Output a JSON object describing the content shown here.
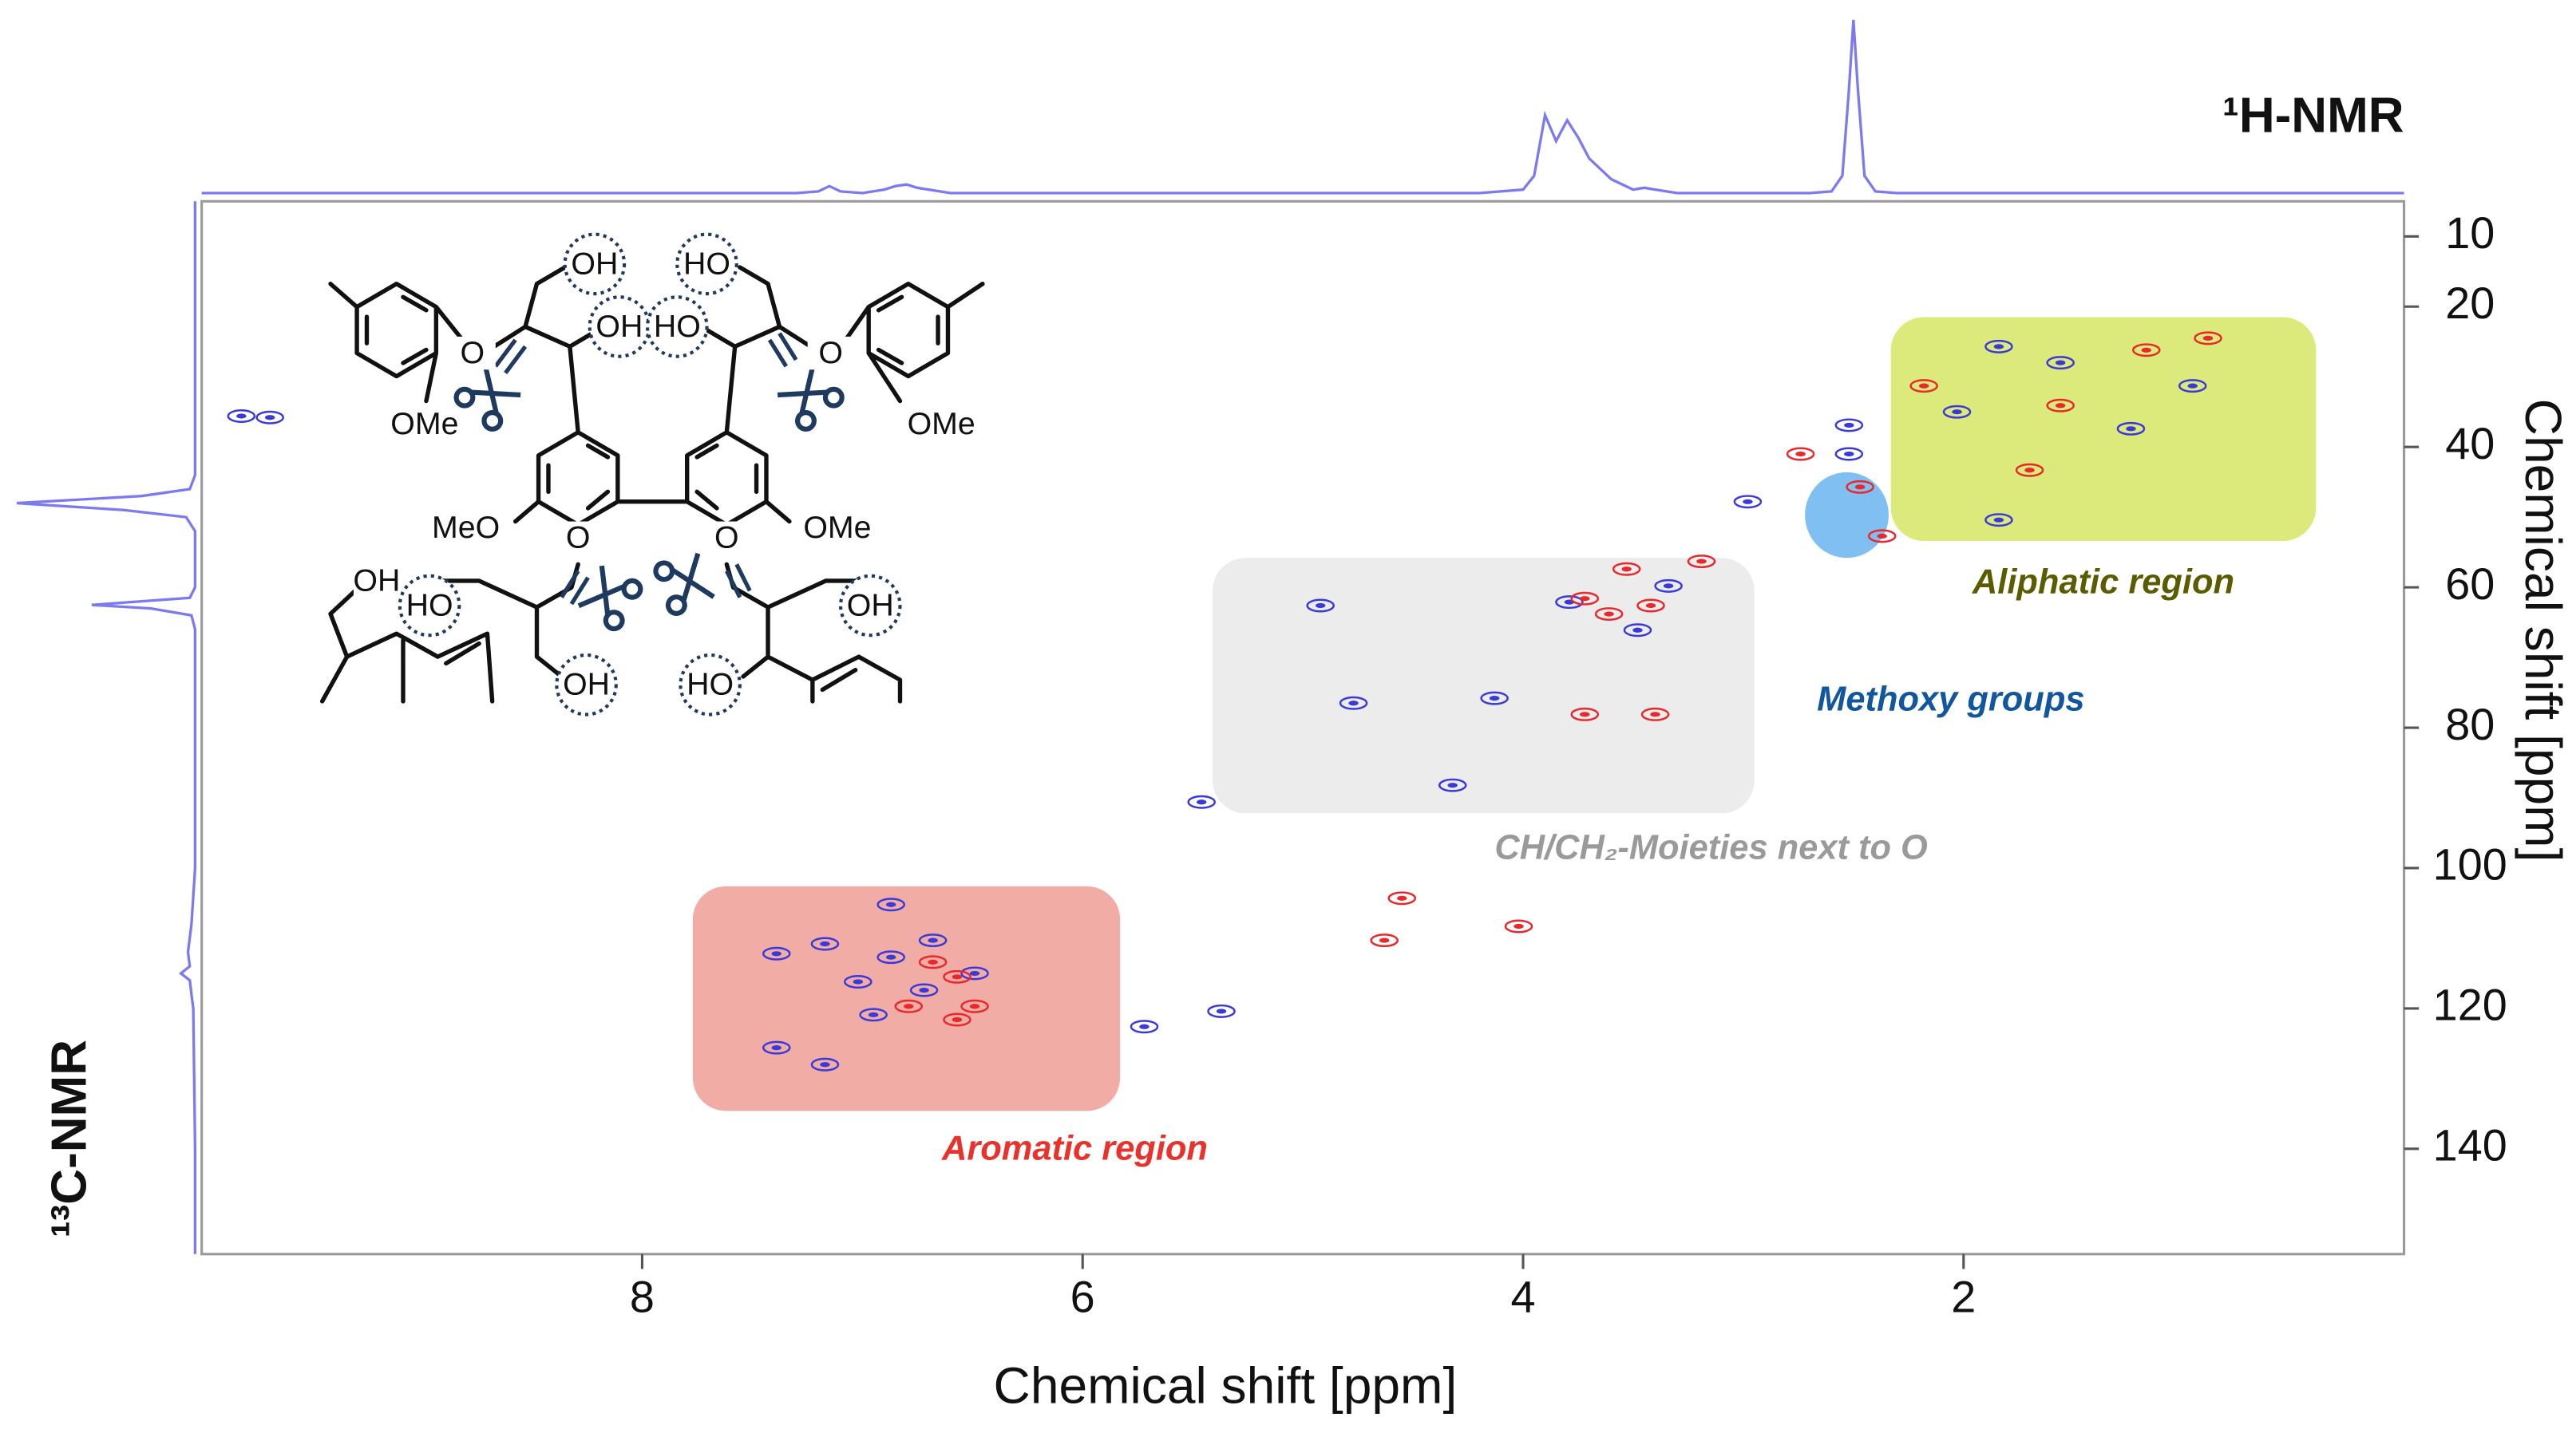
{
  "chart_data": {
    "type": "hsqc",
    "x_label": "Chemical shift [ppm]",
    "y_label": "Chemical shift [ppm]",
    "top_label": "¹H-NMR",
    "left_label": "¹³C-NMR",
    "xlim": [
      10,
      0
    ],
    "ylim": [
      5,
      155
    ],
    "xticks": [
      8,
      6,
      4,
      2
    ],
    "yticks": [
      10,
      20,
      40,
      60,
      80,
      100,
      120,
      140
    ],
    "grid": false,
    "regions": [
      {
        "name": "Aliphatic region",
        "shape": "rect",
        "xlim": [
          2.33,
          0.4
        ],
        "ylim": [
          21.5,
          53.4
        ],
        "color": "#dcea7c",
        "label_color": "#5b5b00"
      },
      {
        "name": "CH/CH₂-Moieties next to O",
        "shape": "rect",
        "xlim": [
          5.41,
          2.95
        ],
        "ylim": [
          55.8,
          92.2
        ],
        "color": "#ececec",
        "label_color": "#9a9a9a"
      },
      {
        "name": "Aromatic region",
        "shape": "rect",
        "xlim": [
          7.77,
          5.83
        ],
        "ylim": [
          102.6,
          134.6
        ],
        "color": "#f2aca6",
        "label_color": "#e8322c"
      },
      {
        "name": "Methoxy groups",
        "shape": "circle",
        "xlim": [
          2.72,
          2.34
        ],
        "ylim": [
          43.6,
          55.8
        ],
        "color": "#6ab4ee",
        "label_color": "#12569e"
      }
    ],
    "series": [
      {
        "color": "#3a3ad8",
        "x": [
          7.39,
          7.17,
          6.87,
          7.02,
          6.72,
          6.49,
          6.95,
          7.39,
          7.17,
          6.68,
          6.87,
          4.92,
          3.79,
          4.32,
          4.13,
          4.77,
          3.48,
          3.34,
          1.84,
          1.56,
          1.24,
          0.96,
          1.84,
          2.03,
          2.52,
          2.52,
          9.82,
          9.69,
          5.37,
          5.72,
          5.46,
          2.98
        ],
        "values": [
          112.2,
          110.8,
          112.7,
          116.2,
          117.4,
          115.0,
          120.9,
          125.6,
          128.0,
          110.3,
          105.2,
          62.6,
          62.1,
          88.2,
          75.8,
          76.5,
          66.1,
          59.8,
          25.7,
          28.0,
          37.4,
          31.3,
          50.4,
          35.0,
          36.9,
          41.0,
          35.6,
          35.8,
          120.4,
          122.6,
          90.6,
          47.8
        ]
      },
      {
        "color": "#e8282a",
        "x": [
          6.57,
          6.68,
          6.49,
          6.57,
          6.79,
          3.72,
          3.61,
          3.42,
          3.72,
          3.4,
          3.19,
          3.53,
          2.18,
          1.56,
          1.17,
          0.89,
          1.7,
          2.74,
          2.47,
          2.37,
          4.55,
          4.02,
          4.63
        ],
        "values": [
          115.5,
          113.4,
          119.7,
          121.6,
          119.7,
          61.6,
          63.8,
          62.6,
          78.1,
          78.1,
          56.3,
          57.4,
          31.3,
          34.1,
          26.2,
          24.5,
          43.3,
          41.0,
          45.7,
          52.7,
          104.3,
          108.3,
          110.3
        ]
      }
    ],
    "h_projection": {
      "color": "#7b7bef",
      "x": [
        10,
        7.3,
        7.2,
        7.15,
        7.1,
        7.0,
        6.9,
        6.85,
        6.8,
        6.75,
        6.6,
        4.2,
        4.0,
        3.95,
        3.9,
        3.85,
        3.8,
        3.75,
        3.7,
        3.6,
        3.5,
        3.45,
        3.4,
        3.3,
        2.7,
        2.6,
        2.55,
        2.52,
        2.5,
        2.48,
        2.45,
        2.4,
        2.3,
        0
      ],
      "values": [
        0,
        0,
        1,
        4,
        1,
        0,
        2,
        4,
        5,
        3,
        0,
        0,
        2,
        10,
        45,
        30,
        42,
        32,
        20,
        8,
        2,
        3,
        2,
        0,
        0,
        1,
        10,
        60,
        100,
        60,
        10,
        1,
        0,
        0
      ]
    },
    "c_projection": {
      "color": "#7b7bef",
      "y": [
        5,
        30,
        44,
        46,
        47,
        48,
        49,
        50,
        52,
        60,
        61.5,
        62,
        62.5,
        63,
        64,
        66,
        100,
        108,
        112,
        114,
        115,
        116,
        118,
        120,
        140,
        155
      ],
      "values": [
        0,
        0,
        0,
        3,
        30,
        100,
        40,
        5,
        0,
        0,
        3,
        30,
        58,
        25,
        2,
        0,
        0,
        2,
        4,
        3,
        8,
        3,
        2,
        1,
        0,
        0
      ]
    }
  },
  "structure": {
    "labels": [
      "OH",
      "OH",
      "HO",
      "HO",
      "OMe",
      "OMe",
      "MeO",
      "OMe",
      "O",
      "O",
      "O",
      "O",
      "OH",
      "HO",
      "OH",
      "HO",
      "OH"
    ]
  }
}
